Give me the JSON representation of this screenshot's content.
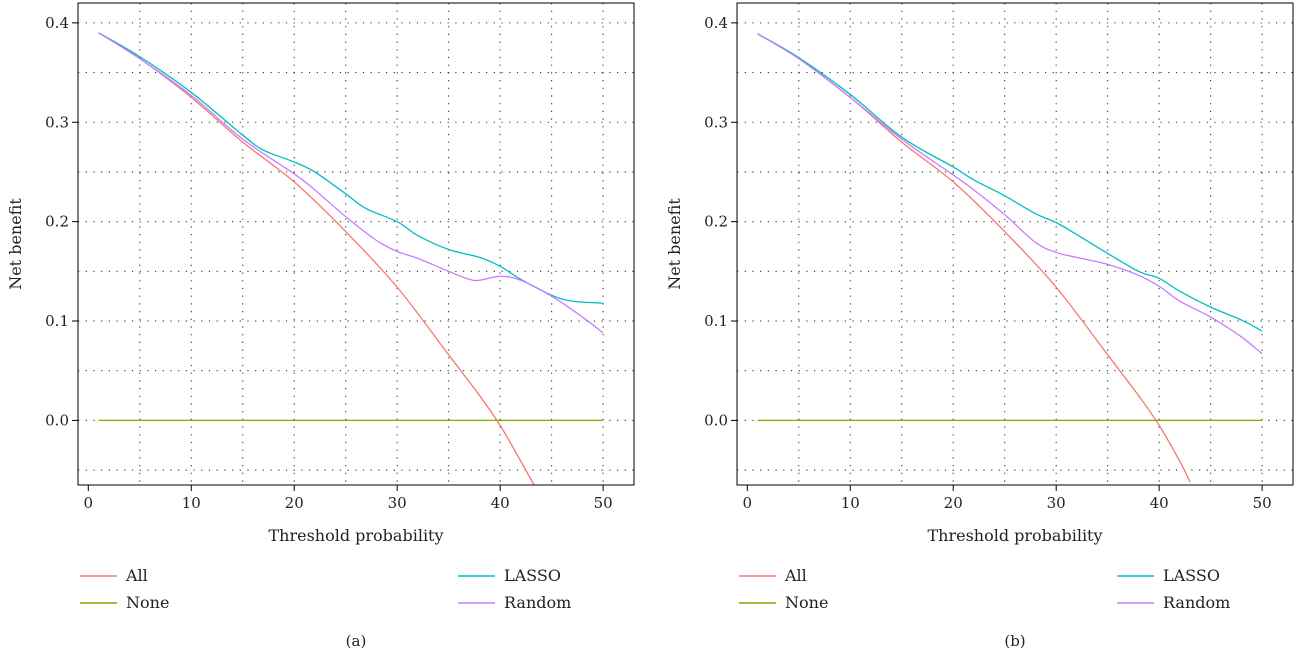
{
  "chart_data": [
    {
      "type": "line",
      "panel_label": "(a)",
      "xlabel": "Threshold probability",
      "ylabel": "Net benefit",
      "xlim": [
        -1,
        53
      ],
      "ylim": [
        -0.065,
        0.42
      ],
      "x_ticks": [
        0,
        10,
        20,
        30,
        40,
        50
      ],
      "y_ticks": [
        0.0,
        0.1,
        0.2,
        0.3,
        0.4
      ],
      "y_tick_labels": [
        "0.0",
        "0.1",
        "0.2",
        "0.3",
        "0.4"
      ],
      "grid": "dotted, x every 5, y every 0.05",
      "legend_position": "bottom",
      "series": [
        {
          "name": "All",
          "color": "#f8766d",
          "x": [
            1,
            5,
            10,
            15,
            20,
            25,
            30,
            35,
            38,
            40,
            42,
            43.3
          ],
          "y": [
            0.39,
            0.364,
            0.325,
            0.28,
            0.24,
            0.19,
            0.134,
            0.066,
            0.025,
            -0.005,
            -0.041,
            -0.065
          ]
        },
        {
          "name": "None",
          "color": "#7cae00",
          "x": [
            1,
            50
          ],
          "y": [
            0.0,
            0.0
          ]
        },
        {
          "name": "LASSO",
          "color": "#00bfc4",
          "x": [
            1,
            5,
            10,
            15,
            17,
            20,
            22,
            25,
            27,
            30,
            32,
            35,
            38,
            40,
            42,
            45,
            47,
            50
          ],
          "y": [
            0.39,
            0.366,
            0.33,
            0.287,
            0.272,
            0.26,
            0.25,
            0.228,
            0.213,
            0.2,
            0.186,
            0.172,
            0.164,
            0.155,
            0.142,
            0.126,
            0.12,
            0.118
          ]
        },
        {
          "name": "Random",
          "color": "#c77cff",
          "x": [
            1,
            5,
            10,
            15,
            20,
            22,
            25,
            28,
            30,
            32,
            35,
            37,
            38,
            40,
            42,
            45,
            48,
            50
          ],
          "y": [
            0.39,
            0.364,
            0.327,
            0.283,
            0.248,
            0.232,
            0.205,
            0.181,
            0.17,
            0.163,
            0.15,
            0.142,
            0.141,
            0.145,
            0.141,
            0.125,
            0.104,
            0.088
          ]
        }
      ]
    },
    {
      "type": "line",
      "panel_label": "(b)",
      "xlabel": "Threshold probability",
      "ylabel": "Net benefit",
      "xlim": [
        -1,
        53
      ],
      "ylim": [
        -0.065,
        0.42
      ],
      "x_ticks": [
        0,
        10,
        20,
        30,
        40,
        50
      ],
      "y_ticks": [
        0.0,
        0.1,
        0.2,
        0.3,
        0.4
      ],
      "y_tick_labels": [
        "0.0",
        "0.1",
        "0.2",
        "0.3",
        "0.4"
      ],
      "grid": "dotted, x every 5, y every 0.05",
      "legend_position": "bottom",
      "series": [
        {
          "name": "All",
          "color": "#f8766d",
          "x": [
            1,
            5,
            10,
            15,
            20,
            25,
            30,
            35,
            38,
            40,
            42,
            43
          ],
          "y": [
            0.389,
            0.364,
            0.325,
            0.28,
            0.24,
            0.19,
            0.134,
            0.066,
            0.025,
            -0.005,
            -0.041,
            -0.062
          ]
        },
        {
          "name": "None",
          "color": "#7cae00",
          "x": [
            1,
            50
          ],
          "y": [
            0.0,
            0.0
          ]
        },
        {
          "name": "LASSO",
          "color": "#00bfc4",
          "x": [
            1,
            5,
            10,
            15,
            20,
            22,
            25,
            28,
            30,
            32,
            35,
            38,
            40,
            42,
            45,
            48,
            50
          ],
          "y": [
            0.389,
            0.365,
            0.328,
            0.285,
            0.255,
            0.242,
            0.226,
            0.208,
            0.199,
            0.187,
            0.168,
            0.15,
            0.143,
            0.13,
            0.114,
            0.101,
            0.09
          ]
        },
        {
          "name": "Random",
          "color": "#c77cff",
          "x": [
            1,
            5,
            10,
            15,
            20,
            22,
            25,
            28,
            30,
            32,
            35,
            38,
            40,
            42,
            45,
            48,
            50
          ],
          "y": [
            0.389,
            0.364,
            0.325,
            0.283,
            0.247,
            0.232,
            0.207,
            0.179,
            0.169,
            0.164,
            0.157,
            0.146,
            0.135,
            0.12,
            0.104,
            0.084,
            0.067
          ]
        }
      ]
    }
  ]
}
